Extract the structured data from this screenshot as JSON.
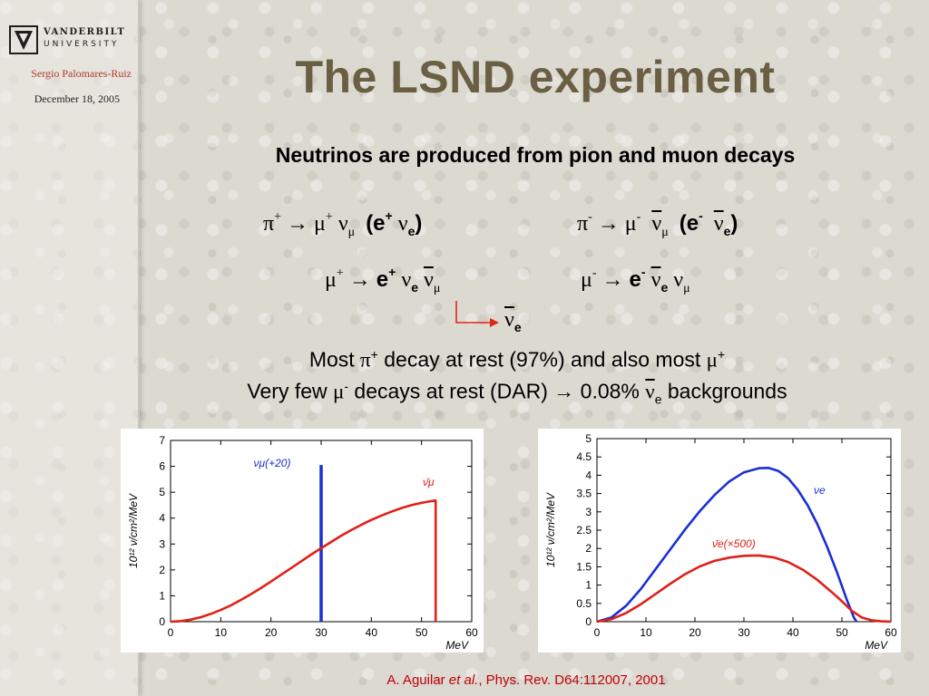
{
  "header": {
    "logo_line1": "VANDERBILT",
    "logo_line2": "UNIVERSITY",
    "author": "Sergio Palomares-Ruiz",
    "date": "December 18, 2005"
  },
  "slide": {
    "title": "The LSND experiment",
    "subtitle": "Neutrinos are produced from pion and muon decays"
  },
  "decays": {
    "pi_plus": {
      "parent": "π",
      "parent_charge": "+",
      "arrow": "→",
      "mu": "μ",
      "mu_charge": "+",
      "nu": "ν",
      "nu_flavor": "μ",
      "paren_open": "(e",
      "e_charge": "+",
      "nu2": "ν",
      "nu2_flavor": "e",
      "paren_close": ")"
    },
    "pi_minus": {
      "parent": "π",
      "parent_charge": "-",
      "arrow": "→",
      "mu": "μ",
      "mu_charge": "-",
      "nu": "ν",
      "nu_flavor": "μ",
      "paren_open": "(e",
      "e_charge": "-",
      "nu2": "ν",
      "nu2_flavor": "e",
      "paren_close": ")"
    },
    "mu_plus": {
      "parent": "μ",
      "parent_charge": "+",
      "arrow": "→",
      "e": "e",
      "e_charge": "+",
      "nu1": "ν",
      "nu1_flavor": "e",
      "nu2": "ν",
      "nu2_flavor": "μ"
    },
    "mu_minus": {
      "parent": "μ",
      "parent_charge": "-",
      "arrow": "→",
      "e": "e",
      "e_charge": "-",
      "nu1": "ν",
      "nu1_flavor": "e",
      "nu2": "ν",
      "nu2_flavor": "μ"
    },
    "oscillated": {
      "nu": "ν",
      "flavor": "e"
    },
    "colors": {
      "arrow": "#e0251b"
    }
  },
  "notes": {
    "line1": {
      "pre": "Most ",
      "sym1": "π",
      "sup1": "+",
      "mid": " decay at rest (97%) and also most ",
      "sym2": "μ",
      "sup2": "+"
    },
    "line2": {
      "pre": "Very few ",
      "sym1": "μ",
      "sup1": "-",
      "mid": " decays at rest (DAR) → 0.08% ",
      "sym2": "ν",
      "sub2": "e",
      "post": " backgrounds"
    }
  },
  "chart_data": [
    {
      "type": "line",
      "title": "",
      "xlabel": "MeV",
      "ylabel": "10¹² ν/cm²/MeV",
      "xlim": [
        0,
        60
      ],
      "ylim": [
        0,
        7
      ],
      "xticks": [
        0,
        10,
        20,
        30,
        40,
        50,
        60
      ],
      "yticks": [
        0,
        1,
        2,
        3,
        4,
        5,
        6,
        7
      ],
      "series": [
        {
          "name": "νμ(+20)",
          "color": "#1a2fd6",
          "style": "vertical-line",
          "points": [
            [
              30,
              0
            ],
            [
              30,
              6.05
            ]
          ]
        },
        {
          "name": "ν̄μ",
          "color": "#e0201a",
          "points": [
            [
              0,
              0
            ],
            [
              2,
              0.02
            ],
            [
              4,
              0.08
            ],
            [
              6,
              0.17
            ],
            [
              8,
              0.3
            ],
            [
              10,
              0.45
            ],
            [
              12,
              0.63
            ],
            [
              14,
              0.84
            ],
            [
              16,
              1.06
            ],
            [
              18,
              1.3
            ],
            [
              20,
              1.55
            ],
            [
              22,
              1.81
            ],
            [
              24,
              2.07
            ],
            [
              26,
              2.33
            ],
            [
              28,
              2.59
            ],
            [
              30,
              2.84
            ],
            [
              32,
              3.08
            ],
            [
              34,
              3.32
            ],
            [
              36,
              3.54
            ],
            [
              38,
              3.74
            ],
            [
              40,
              3.93
            ],
            [
              42,
              4.1
            ],
            [
              44,
              4.25
            ],
            [
              46,
              4.39
            ],
            [
              48,
              4.5
            ],
            [
              50,
              4.59
            ],
            [
              52,
              4.66
            ],
            [
              52.8,
              4.68
            ],
            [
              52.8,
              0
            ]
          ]
        }
      ]
    },
    {
      "type": "line",
      "title": "",
      "xlabel": "MeV",
      "ylabel": "10¹² ν/cm²/MeV",
      "xlim": [
        0,
        60
      ],
      "ylim": [
        0,
        5
      ],
      "xticks": [
        0,
        10,
        20,
        30,
        40,
        50,
        60
      ],
      "yticks": [
        0,
        0.5,
        1,
        1.5,
        2,
        2.5,
        3,
        3.5,
        4,
        4.5,
        5
      ],
      "series": [
        {
          "name": "νe",
          "color": "#1a2fd6",
          "points": [
            [
              0,
              0
            ],
            [
              3,
              0.12
            ],
            [
              6,
              0.44
            ],
            [
              9,
              0.9
            ],
            [
              12,
              1.44
            ],
            [
              15,
              1.98
            ],
            [
              18,
              2.52
            ],
            [
              21,
              3.02
            ],
            [
              24,
              3.46
            ],
            [
              27,
              3.83
            ],
            [
              30,
              4.08
            ],
            [
              33,
              4.19
            ],
            [
              35,
              4.2
            ],
            [
              37,
              4.12
            ],
            [
              39,
              3.92
            ],
            [
              41,
              3.6
            ],
            [
              43,
              3.18
            ],
            [
              45,
              2.66
            ],
            [
              47,
              2.04
            ],
            [
              49,
              1.35
            ],
            [
              51,
              0.6
            ],
            [
              52.5,
              0.1
            ],
            [
              53,
              0
            ]
          ]
        },
        {
          "name": "ν̄e(×500)",
          "color": "#e0201a",
          "points": [
            [
              0,
              0
            ],
            [
              3,
              0.07
            ],
            [
              6,
              0.24
            ],
            [
              9,
              0.48
            ],
            [
              12,
              0.76
            ],
            [
              15,
              1.04
            ],
            [
              18,
              1.3
            ],
            [
              21,
              1.51
            ],
            [
              24,
              1.66
            ],
            [
              27,
              1.75
            ],
            [
              30,
              1.8
            ],
            [
              33,
              1.81
            ],
            [
              36,
              1.76
            ],
            [
              39,
              1.63
            ],
            [
              42,
              1.42
            ],
            [
              45,
              1.14
            ],
            [
              48,
              0.8
            ],
            [
              50,
              0.56
            ],
            [
              52,
              0.3
            ],
            [
              54,
              0.12
            ],
            [
              56,
              0.04
            ],
            [
              58,
              0.01
            ],
            [
              60,
              0
            ]
          ]
        }
      ]
    }
  ],
  "reference": {
    "pre": "A. Aguilar ",
    "italic": "et al.",
    "post": ", Phys. Rev. D64:112007, 2001"
  }
}
